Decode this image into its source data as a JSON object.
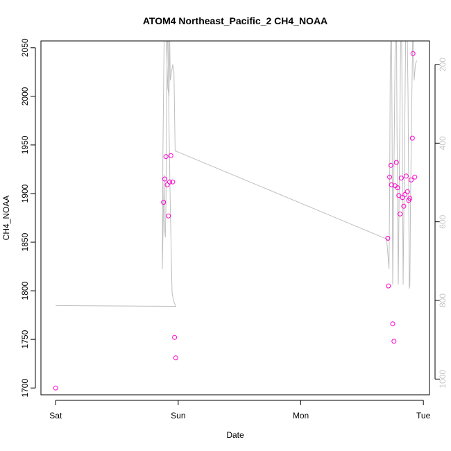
{
  "chart_data": {
    "type": "scatter",
    "title": "ATOM4 Northeast_Pacific_2 CH4_NOAA",
    "xlabel": "Date",
    "ylabel": "CH4_NOAA",
    "x_tick_labels": [
      "Sat",
      "Sun",
      "Mon",
      "Tue"
    ],
    "xlim_days": [
      -0.12,
      3.05
    ],
    "ylim": [
      1693,
      2057
    ],
    "y_ticks": [
      1700,
      1750,
      1800,
      1850,
      1900,
      1950,
      2000,
      2050
    ],
    "y2_ticks": [
      200,
      400,
      600,
      800,
      1000
    ],
    "y2_axis": "pressure (reversed), no label printed",
    "y2lim": [
      1040,
      140
    ],
    "point_color": "#ff00cc",
    "line_color": "#bebebe",
    "grid": false,
    "series": [
      {
        "values_xy": [
          [
            0.0,
            1700
          ],
          [
            0.88,
            1891
          ],
          [
            0.89,
            1915
          ],
          [
            0.9,
            1938
          ],
          [
            0.91,
            1909
          ],
          [
            0.92,
            1877
          ],
          [
            0.93,
            1912
          ],
          [
            0.94,
            1939
          ],
          [
            0.955,
            1912
          ],
          [
            0.97,
            1752
          ],
          [
            0.98,
            1731
          ],
          [
            2.71,
            1854
          ],
          [
            2.715,
            1805
          ],
          [
            2.725,
            1917
          ],
          [
            2.735,
            1929
          ],
          [
            2.74,
            1909
          ],
          [
            2.75,
            1766
          ],
          [
            2.76,
            1748
          ],
          [
            2.77,
            1908
          ],
          [
            2.78,
            1932
          ],
          [
            2.79,
            1906
          ],
          [
            2.8,
            1898
          ],
          [
            2.81,
            1879
          ],
          [
            2.82,
            1916
          ],
          [
            2.83,
            1896
          ],
          [
            2.84,
            1887
          ],
          [
            2.85,
            1899
          ],
          [
            2.86,
            1918
          ],
          [
            2.87,
            1902
          ],
          [
            2.88,
            1893
          ],
          [
            2.89,
            1895
          ],
          [
            2.9,
            1914
          ],
          [
            2.91,
            1957
          ],
          [
            2.915,
            2044
          ],
          [
            2.93,
            1917
          ]
        ]
      },
      {
        "axis": "right",
        "values_xy": [
          [
            0.0,
            813
          ],
          [
            0.98,
            815
          ],
          [
            0.975,
            812
          ],
          [
            0.96,
            798
          ],
          [
            0.95,
            780
          ],
          [
            0.935,
            560
          ],
          [
            0.925,
            360
          ],
          [
            0.915,
            60
          ],
          [
            0.905,
            300
          ],
          [
            0.9,
            560
          ],
          [
            0.895,
            640
          ],
          [
            0.89,
            620
          ],
          [
            0.885,
            480
          ],
          [
            0.875,
            640
          ],
          [
            0.87,
            720
          ],
          [
            0.875,
            420
          ],
          [
            0.885,
            140
          ],
          [
            0.895,
            100
          ],
          [
            0.905,
            160
          ],
          [
            0.915,
            260
          ],
          [
            0.925,
            280
          ],
          [
            0.93,
            120
          ],
          [
            0.935,
            240
          ],
          [
            0.945,
            220
          ],
          [
            0.955,
            200
          ],
          [
            0.965,
            220
          ],
          [
            0.975,
            420
          ],
          [
            0.98,
            420
          ],
          [
            2.71,
            645
          ],
          [
            2.7,
            643
          ],
          [
            2.72,
            720
          ],
          [
            2.725,
            500
          ],
          [
            2.73,
            180
          ],
          [
            2.74,
            90
          ],
          [
            2.745,
            370
          ],
          [
            2.75,
            760
          ],
          [
            2.76,
            460
          ],
          [
            2.77,
            160
          ],
          [
            2.78,
            60
          ],
          [
            2.785,
            370
          ],
          [
            2.795,
            760
          ],
          [
            2.805,
            440
          ],
          [
            2.815,
            140
          ],
          [
            2.82,
            40
          ],
          [
            2.825,
            240
          ],
          [
            2.835,
            760
          ],
          [
            2.845,
            460
          ],
          [
            2.855,
            140
          ],
          [
            2.865,
            40
          ],
          [
            2.875,
            280
          ],
          [
            2.885,
            770
          ],
          [
            2.89,
            760
          ],
          [
            2.895,
            560
          ],
          [
            2.905,
            300
          ],
          [
            2.915,
            80
          ],
          [
            2.925,
            240
          ],
          [
            2.935,
            200
          ],
          [
            2.945,
            190
          ]
        ]
      }
    ]
  }
}
